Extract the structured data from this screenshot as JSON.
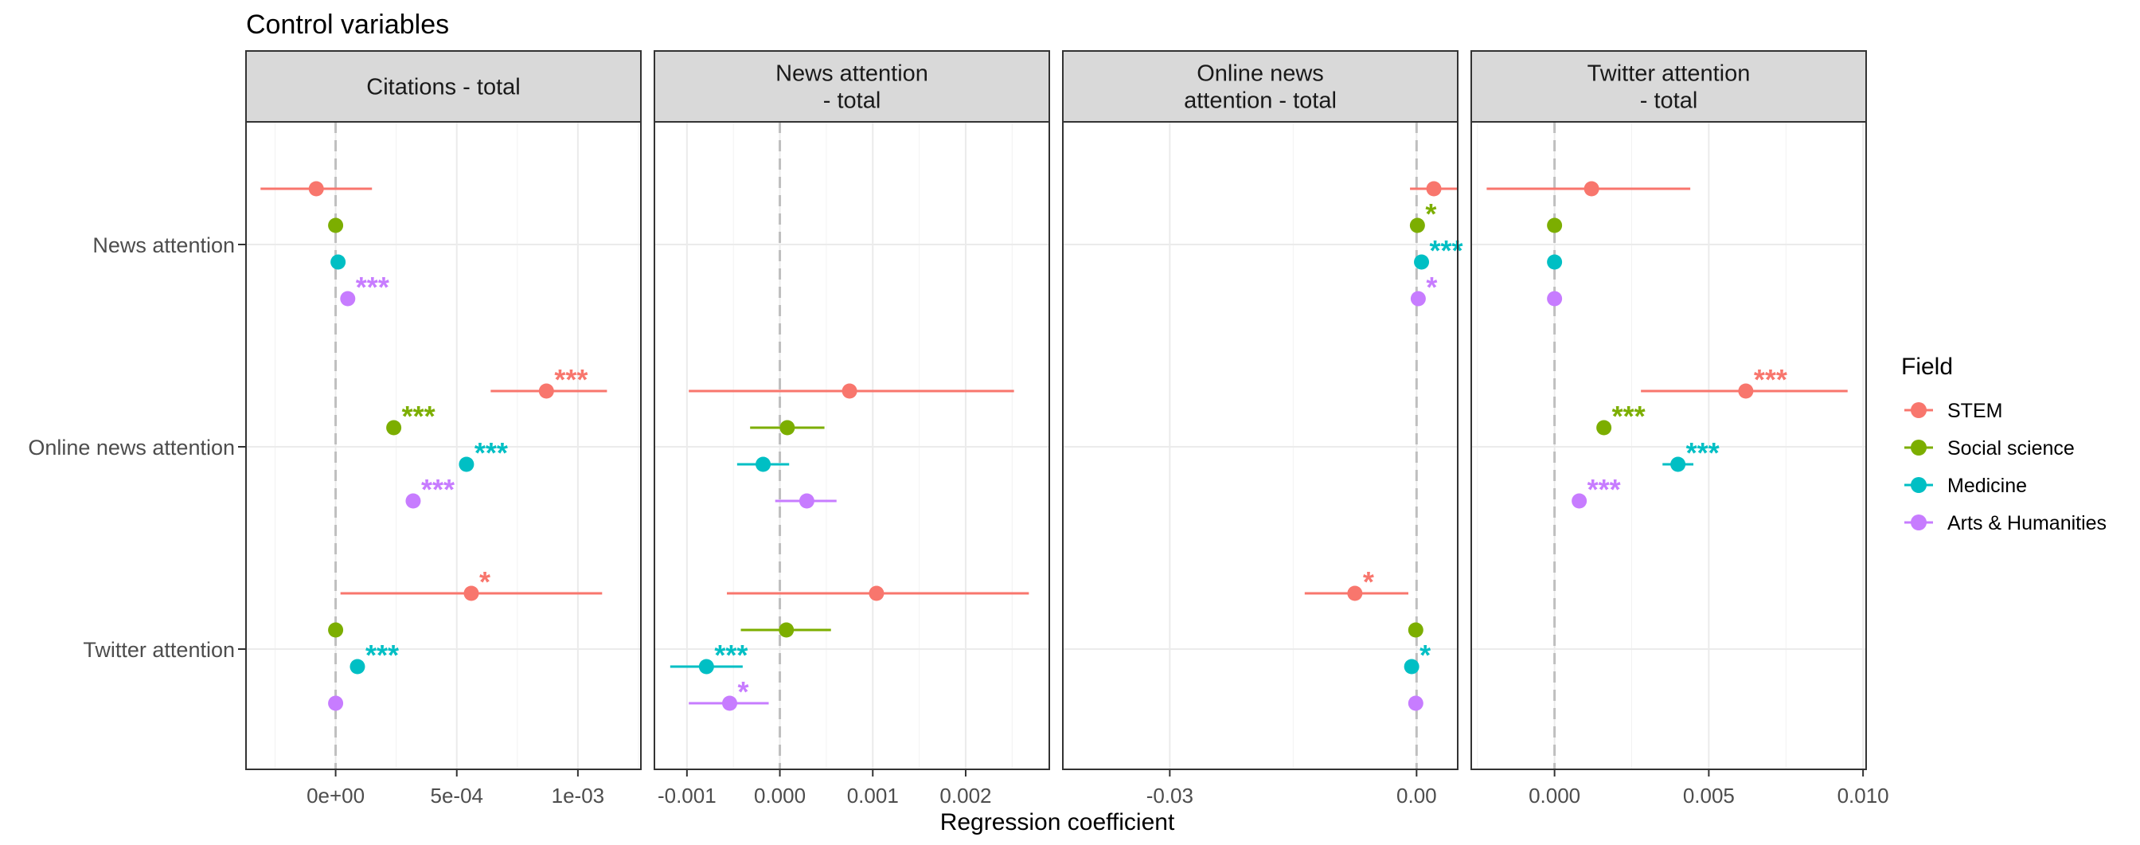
{
  "title": "Control variables",
  "xlabel": "Regression coefficient",
  "legend": {
    "title": "Field",
    "items": [
      "STEM",
      "Social science",
      "Medicine",
      "Arts & Humanities"
    ]
  },
  "colors": {
    "STEM": "#F8766D",
    "Social science": "#7CAE00",
    "Medicine": "#00BFC4",
    "Arts & Humanities": "#C77CFF"
  },
  "chart_data": {
    "type": "scatter",
    "description_kind": "coefficient plot with confidence intervals, faceted",
    "rows": [
      "News attention",
      "Online news attention",
      "Twitter attention"
    ],
    "fields": [
      "STEM",
      "Social science",
      "Medicine",
      "Arts & Humanities"
    ],
    "facets": [
      {
        "title": "Citations - total",
        "title_lines": [
          "Citations - total"
        ],
        "xlim": [
          -0.00037,
          0.00126
        ],
        "ticks": [
          0,
          0.0005,
          0.001
        ],
        "tick_labels": [
          "0e+00",
          "5e-04",
          "1e-03"
        ],
        "points": [
          {
            "row": "News attention",
            "field": "STEM",
            "est": -8e-05,
            "lo": -0.00031,
            "hi": 0.00015,
            "sig": ""
          },
          {
            "row": "News attention",
            "field": "Social science",
            "est": 0.0,
            "lo": 0.0,
            "hi": 0.0,
            "sig": ""
          },
          {
            "row": "News attention",
            "field": "Medicine",
            "est": 1e-05,
            "lo": 0.0,
            "hi": 2e-05,
            "sig": ""
          },
          {
            "row": "News attention",
            "field": "Arts & Humanities",
            "est": 5e-05,
            "lo": 4e-05,
            "hi": 6e-05,
            "sig": "***"
          },
          {
            "row": "Online news attention",
            "field": "STEM",
            "est": 0.00087,
            "lo": 0.00064,
            "hi": 0.00112,
            "sig": "***"
          },
          {
            "row": "Online news attention",
            "field": "Social science",
            "est": 0.00024,
            "lo": 0.00022,
            "hi": 0.00026,
            "sig": "***"
          },
          {
            "row": "Online news attention",
            "field": "Medicine",
            "est": 0.00054,
            "lo": 0.00052,
            "hi": 0.00056,
            "sig": "***"
          },
          {
            "row": "Online news attention",
            "field": "Arts & Humanities",
            "est": 0.00032,
            "lo": 0.0003,
            "hi": 0.00034,
            "sig": "***"
          },
          {
            "row": "Twitter attention",
            "field": "STEM",
            "est": 0.00056,
            "lo": 2e-05,
            "hi": 0.0011,
            "sig": "*"
          },
          {
            "row": "Twitter attention",
            "field": "Social science",
            "est": 0.0,
            "lo": -1e-05,
            "hi": 1e-05,
            "sig": ""
          },
          {
            "row": "Twitter attention",
            "field": "Medicine",
            "est": 9e-05,
            "lo": 7e-05,
            "hi": 0.00011,
            "sig": "***"
          },
          {
            "row": "Twitter attention",
            "field": "Arts & Humanities",
            "est": 0.0,
            "lo": -1e-05,
            "hi": 1e-05,
            "sig": ""
          }
        ]
      },
      {
        "title": "News attention - total",
        "title_lines": [
          "News attention",
          "- total"
        ],
        "xlim": [
          -0.00135,
          0.0029
        ],
        "ticks": [
          -0.001,
          0.0,
          0.001,
          0.002
        ],
        "tick_labels": [
          "-0.001",
          "0.000",
          "0.001",
          "0.002"
        ],
        "points": [
          {
            "row": "Online news attention",
            "field": "STEM",
            "est": 0.00075,
            "lo": -0.00098,
            "hi": 0.00252,
            "sig": ""
          },
          {
            "row": "Online news attention",
            "field": "Social science",
            "est": 8e-05,
            "lo": -0.00032,
            "hi": 0.00048,
            "sig": ""
          },
          {
            "row": "Online news attention",
            "field": "Medicine",
            "est": -0.00018,
            "lo": -0.00046,
            "hi": 0.0001,
            "sig": ""
          },
          {
            "row": "Online news attention",
            "field": "Arts & Humanities",
            "est": 0.00029,
            "lo": -5e-05,
            "hi": 0.00061,
            "sig": ""
          },
          {
            "row": "Twitter attention",
            "field": "STEM",
            "est": 0.00104,
            "lo": -0.00057,
            "hi": 0.00268,
            "sig": ""
          },
          {
            "row": "Twitter attention",
            "field": "Social science",
            "est": 7e-05,
            "lo": -0.00042,
            "hi": 0.00055,
            "sig": ""
          },
          {
            "row": "Twitter attention",
            "field": "Medicine",
            "est": -0.00079,
            "lo": -0.00118,
            "hi": -0.0004,
            "sig": "***"
          },
          {
            "row": "Twitter attention",
            "field": "Arts & Humanities",
            "est": -0.00054,
            "lo": -0.00098,
            "hi": -0.00012,
            "sig": "*"
          }
        ]
      },
      {
        "title": "Online news attention - total",
        "title_lines": [
          "Online news",
          "attention - total"
        ],
        "xlim": [
          -0.043,
          0.005
        ],
        "ticks": [
          -0.03,
          0.0
        ],
        "tick_labels": [
          "-0.03",
          "0.00"
        ],
        "points": [
          {
            "row": "News attention",
            "field": "STEM",
            "est": 0.0021,
            "lo": -0.0008,
            "hi": 0.005,
            "sig": ""
          },
          {
            "row": "News attention",
            "field": "Social science",
            "est": 0.0001,
            "lo": 0.0,
            "hi": 0.0002,
            "sig": "*"
          },
          {
            "row": "News attention",
            "field": "Medicine",
            "est": 0.0006,
            "lo": 0.0004,
            "hi": 0.0008,
            "sig": "***"
          },
          {
            "row": "News attention",
            "field": "Arts & Humanities",
            "est": 0.0002,
            "lo": 0.0001,
            "hi": 0.0003,
            "sig": "*"
          },
          {
            "row": "Twitter attention",
            "field": "STEM",
            "est": -0.0075,
            "lo": -0.0136,
            "hi": -0.001,
            "sig": "*"
          },
          {
            "row": "Twitter attention",
            "field": "Social science",
            "est": -0.0001,
            "lo": -0.0002,
            "hi": 0.0,
            "sig": ""
          },
          {
            "row": "Twitter attention",
            "field": "Medicine",
            "est": -0.0006,
            "lo": -0.0009,
            "hi": -0.0003,
            "sig": "*"
          },
          {
            "row": "Twitter attention",
            "field": "Arts & Humanities",
            "est": -0.0001,
            "lo": -0.0002,
            "hi": 0.0,
            "sig": ""
          }
        ]
      },
      {
        "title": "Twitter attention - total",
        "title_lines": [
          "Twitter attention",
          "- total"
        ],
        "xlim": [
          -0.0027,
          0.0101
        ],
        "ticks": [
          0.0,
          0.005,
          0.01
        ],
        "tick_labels": [
          "0.000",
          "0.005",
          "0.010"
        ],
        "points": [
          {
            "row": "News attention",
            "field": "STEM",
            "est": 0.0012,
            "lo": -0.0022,
            "hi": 0.0044,
            "sig": ""
          },
          {
            "row": "News attention",
            "field": "Social science",
            "est": 0.0,
            "lo": -0.0001,
            "hi": 0.0001,
            "sig": ""
          },
          {
            "row": "News attention",
            "field": "Medicine",
            "est": 0.0,
            "lo": -0.0001,
            "hi": 0.0001,
            "sig": ""
          },
          {
            "row": "News attention",
            "field": "Arts & Humanities",
            "est": 0.0,
            "lo": -0.0001,
            "hi": 0.0001,
            "sig": ""
          },
          {
            "row": "Online news attention",
            "field": "STEM",
            "est": 0.0062,
            "lo": 0.0028,
            "hi": 0.0095,
            "sig": "***"
          },
          {
            "row": "Online news attention",
            "field": "Social science",
            "est": 0.0016,
            "lo": 0.0014,
            "hi": 0.0018,
            "sig": "***"
          },
          {
            "row": "Online news attention",
            "field": "Medicine",
            "est": 0.004,
            "lo": 0.0035,
            "hi": 0.0045,
            "sig": "***"
          },
          {
            "row": "Online news attention",
            "field": "Arts & Humanities",
            "est": 0.0008,
            "lo": 0.0006,
            "hi": 0.001,
            "sig": "***"
          }
        ]
      }
    ]
  }
}
